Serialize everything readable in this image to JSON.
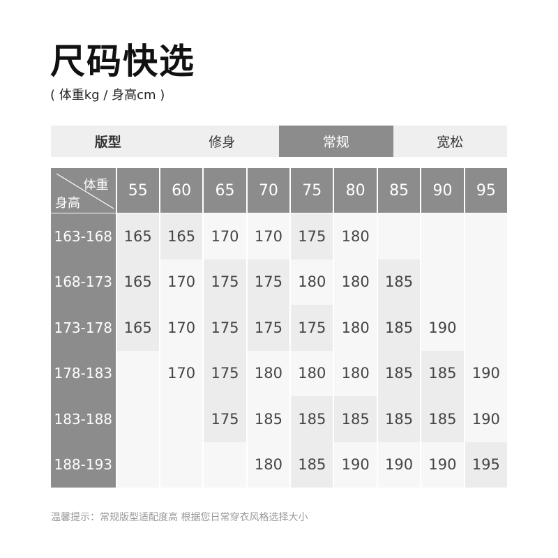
{
  "title": "尺码快选",
  "subtitle": "( 体重kg / 身高cm )",
  "fit": {
    "label": "版型",
    "options": [
      "修身",
      "常规",
      "宽松"
    ],
    "selected": "常规"
  },
  "table": {
    "corner_weight": "体重",
    "corner_height": "身高",
    "weights": [
      "55",
      "60",
      "65",
      "70",
      "75",
      "80",
      "85",
      "90",
      "95"
    ],
    "heights": [
      "163-168",
      "168-173",
      "173-178",
      "178-183",
      "183-188",
      "188-193"
    ],
    "sizes": [
      [
        "165",
        "165",
        "170",
        "170",
        "175",
        "180",
        "",
        "",
        ""
      ],
      [
        "165",
        "170",
        "175",
        "175",
        "180",
        "180",
        "185",
        "",
        ""
      ],
      [
        "165",
        "170",
        "175",
        "175",
        "175",
        "180",
        "185",
        "190",
        ""
      ],
      [
        "",
        "170",
        "175",
        "180",
        "180",
        "180",
        "185",
        "185",
        "190"
      ],
      [
        "",
        "",
        "175",
        "185",
        "185",
        "185",
        "185",
        "185",
        "190"
      ],
      [
        "",
        "",
        "",
        "180",
        "185",
        "190",
        "190",
        "190",
        "195"
      ]
    ]
  },
  "note": "温馨提示：常规版型适配度高 根据您日常穿衣风格选择大小",
  "colors": {
    "header": "#8c8c8c",
    "cell": "#f7f7f7",
    "cell_shade": "#ececec"
  }
}
